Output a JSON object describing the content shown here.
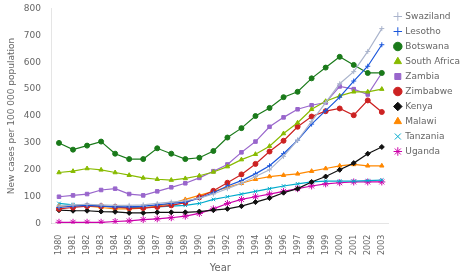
{
  "chart_data": {
    "type": "line",
    "x": [
      1980,
      1981,
      1982,
      1983,
      1984,
      1985,
      1986,
      1987,
      1988,
      1989,
      1990,
      1991,
      1992,
      1993,
      1994,
      1995,
      1996,
      1997,
      1998,
      1999,
      2000,
      2001,
      2002,
      2003
    ],
    "xlabel": "Year",
    "ylabel": "New cases per 100 000 population",
    "xlim": [
      1979.5,
      2003.5
    ],
    "xticks": [
      1980,
      1981,
      1982,
      1983,
      1984,
      1985,
      1986,
      1987,
      1988,
      1989,
      1990,
      1991,
      1992,
      1993,
      1994,
      1995,
      1996,
      1997,
      1998,
      1999,
      2000,
      2001,
      2002,
      2003
    ],
    "ylim": [
      0,
      800
    ],
    "yticks": [
      0,
      100,
      200,
      300,
      400,
      500,
      600,
      700,
      800
    ],
    "grid": false,
    "legend": "right",
    "series": [
      {
        "name": "Swaziland",
        "color": "#aab4cc",
        "marker": "plus",
        "values": [
          65,
          70,
          72,
          70,
          68,
          68,
          70,
          75,
          80,
          85,
          95,
          110,
          130,
          150,
          175,
          200,
          250,
          310,
          380,
          450,
          520,
          565,
          640,
          725
        ]
      },
      {
        "name": "Lesotho",
        "color": "#1a56db",
        "marker": "plus",
        "values": [
          60,
          65,
          68,
          65,
          62,
          62,
          65,
          70,
          75,
          80,
          95,
          115,
          140,
          160,
          185,
          215,
          260,
          310,
          370,
          420,
          470,
          530,
          585,
          665
        ]
      },
      {
        "name": "Botswana",
        "color": "#1a7a1a",
        "marker": "circle",
        "values": [
          300,
          275,
          290,
          305,
          260,
          240,
          240,
          280,
          260,
          240,
          245,
          270,
          320,
          355,
          400,
          430,
          470,
          490,
          540,
          580,
          620,
          590,
          560,
          560
        ]
      },
      {
        "name": "South Africa",
        "color": "#88bb00",
        "marker": "triangle",
        "values": [
          190,
          195,
          205,
          200,
          190,
          180,
          170,
          165,
          162,
          168,
          178,
          192,
          212,
          238,
          258,
          288,
          335,
          375,
          425,
          455,
          475,
          490,
          490,
          500
        ]
      },
      {
        "name": "Zambia",
        "color": "#9966cc",
        "marker": "square",
        "values": [
          100,
          105,
          110,
          125,
          130,
          110,
          105,
          120,
          135,
          150,
          170,
          195,
          220,
          265,
          305,
          360,
          395,
          425,
          440,
          450,
          510,
          500,
          480,
          560
        ]
      },
      {
        "name": "Zimbabwe",
        "color": "#cc2222",
        "marker": "circle",
        "values": [
          55,
          60,
          65,
          65,
          62,
          58,
          58,
          62,
          68,
          78,
          98,
          122,
          152,
          183,
          222,
          268,
          308,
          360,
          398,
          418,
          428,
          403,
          458,
          415
        ]
      },
      {
        "name": "Kenya",
        "color": "#111111",
        "marker": "diamond",
        "values": [
          50,
          48,
          48,
          45,
          44,
          40,
          40,
          42,
          42,
          42,
          45,
          50,
          55,
          65,
          80,
          95,
          115,
          130,
          155,
          175,
          200,
          225,
          260,
          285
        ]
      },
      {
        "name": "Malawi",
        "color": "#ff8800",
        "marker": "triangle",
        "values": [
          65,
          65,
          65,
          60,
          55,
          55,
          58,
          65,
          75,
          90,
          105,
          120,
          135,
          150,
          165,
          175,
          180,
          185,
          195,
          205,
          215,
          220,
          215,
          215
        ]
      },
      {
        "name": "Tanzania",
        "color": "#00aacc",
        "marker": "cross",
        "values": [
          75,
          70,
          68,
          65,
          62,
          60,
          60,
          62,
          65,
          68,
          75,
          90,
          100,
          110,
          120,
          130,
          140,
          148,
          155,
          158,
          158,
          158,
          160,
          162
        ]
      },
      {
        "name": "Uganda",
        "color": "#cc00aa",
        "marker": "star",
        "values": [
          5,
          5,
          5,
          5,
          8,
          10,
          15,
          18,
          22,
          28,
          38,
          55,
          75,
          90,
          100,
          110,
          120,
          130,
          140,
          148,
          152,
          155,
          155,
          155
        ]
      }
    ]
  }
}
